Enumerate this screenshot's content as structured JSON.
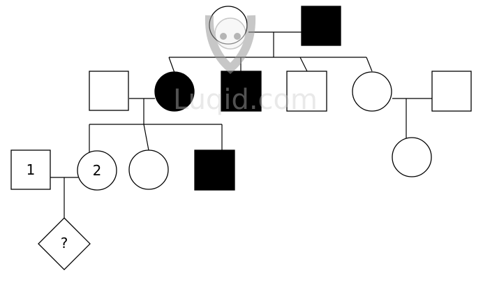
{
  "pedigree": {
    "colors": {
      "affected": "#000000",
      "unaffected": "#ffffff",
      "stroke": "#000000"
    },
    "labels": {
      "individual_1": "1",
      "individual_2": "2",
      "unknown_child": "?"
    }
  },
  "watermark": {
    "text": "Luqid.com"
  }
}
